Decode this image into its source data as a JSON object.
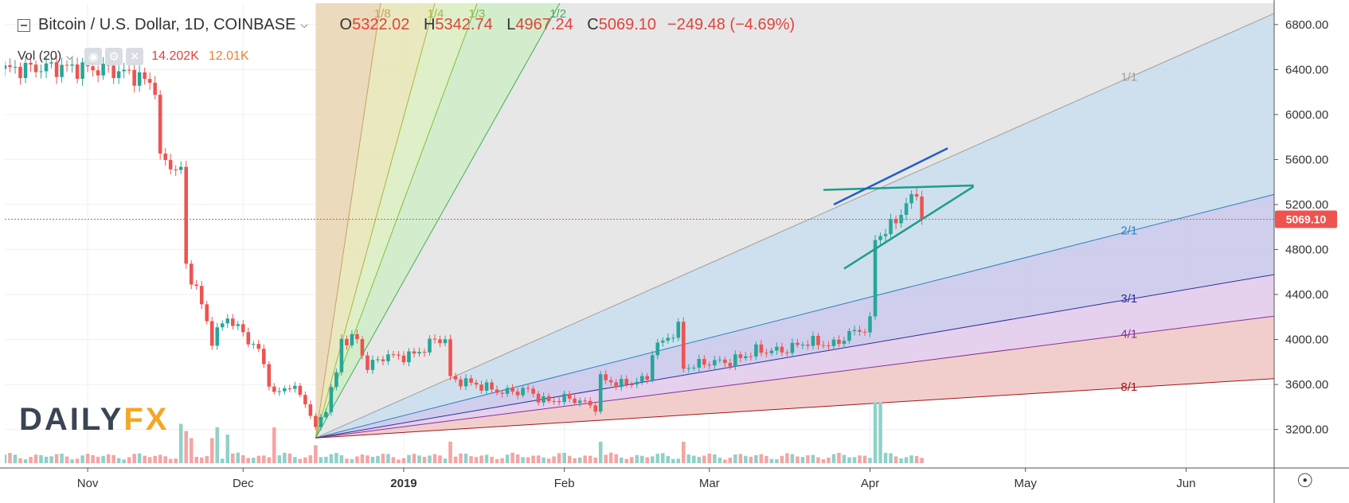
{
  "header": {
    "symbol": "Bitcoin / U.S. Dollar, 1D, COINBASE",
    "o_label": "O",
    "o_value": "5322.02",
    "h_label": "H",
    "h_value": "5342.74",
    "l_label": "L",
    "l_value": "4967.24",
    "c_label": "C",
    "c_value": "5069.10",
    "change": "−249.48 (−4.69%)"
  },
  "volume_legend": {
    "label": "Vol (20)",
    "value1": "14.202K",
    "value2": "12.01K"
  },
  "logo": {
    "part1": "DAILY",
    "part2": "FX"
  },
  "colors": {
    "up": "#26a69a",
    "down": "#ef5350",
    "vol_up": "#8fd1c8",
    "vol_down": "#f4a5a3",
    "last_price": "#ef5350",
    "pattern_teal": "#1f9c8c",
    "pattern_blue": "#1f5fd1"
  },
  "chart_data": {
    "type": "candlestick",
    "symbol": "BTCUSD",
    "exchange": "COINBASE",
    "interval": "1D",
    "x_ticks": [
      "Nov",
      "Dec",
      "2019",
      "Feb",
      "Mar",
      "Apr",
      "May",
      "Jun"
    ],
    "y_ticks": [
      "3200.00",
      "3600.00",
      "4000.00",
      "4400.00",
      "4800.00",
      "5200.00",
      "5600.00",
      "6000.00",
      "6400.00",
      "6800.00"
    ],
    "ylim": [
      2900,
      6990
    ],
    "xlim": [
      "2018-10-16",
      "2019-06-18"
    ],
    "last_price": 5069.1,
    "last_price_label": "5069.10",
    "price_anchors": [
      [
        "2018-10-16",
        6400
      ],
      [
        "2018-10-25",
        6420
      ],
      [
        "2018-11-05",
        6400
      ],
      [
        "2018-11-10",
        6350
      ],
      [
        "2018-11-14",
        6250
      ],
      [
        "2018-11-15",
        5600
      ],
      [
        "2018-11-19",
        5500
      ],
      [
        "2018-11-20",
        4650
      ],
      [
        "2018-11-22",
        4450
      ],
      [
        "2018-11-25",
        4000
      ],
      [
        "2018-11-28",
        4200
      ],
      [
        "2018-12-01",
        4050
      ],
      [
        "2018-12-04",
        3900
      ],
      [
        "2018-12-07",
        3500
      ],
      [
        "2018-12-10",
        3600
      ],
      [
        "2018-12-13",
        3450
      ],
      [
        "2018-12-15",
        3200
      ],
      [
        "2018-12-17",
        3400
      ],
      [
        "2018-12-19",
        3700
      ],
      [
        "2018-12-20",
        4000
      ],
      [
        "2018-12-23",
        4000
      ],
      [
        "2018-12-25",
        3750
      ],
      [
        "2018-12-28",
        3850
      ],
      [
        "2019-01-02",
        3850
      ],
      [
        "2019-01-05",
        3920
      ],
      [
        "2019-01-07",
        4000
      ],
      [
        "2019-01-09",
        4000
      ],
      [
        "2019-01-10",
        3650
      ],
      [
        "2019-01-15",
        3600
      ],
      [
        "2019-01-20",
        3530
      ],
      [
        "2019-01-25",
        3550
      ],
      [
        "2019-01-28",
        3450
      ],
      [
        "2019-02-02",
        3480
      ],
      [
        "2019-02-07",
        3400
      ],
      [
        "2019-02-08",
        3650
      ],
      [
        "2019-02-12",
        3600
      ],
      [
        "2019-02-17",
        3650
      ],
      [
        "2019-02-18",
        3900
      ],
      [
        "2019-02-23",
        4100
      ],
      [
        "2019-02-24",
        3750
      ],
      [
        "2019-03-01",
        3800
      ],
      [
        "2019-03-05",
        3800
      ],
      [
        "2019-03-10",
        3900
      ],
      [
        "2019-03-15",
        3900
      ],
      [
        "2019-03-20",
        3980
      ],
      [
        "2019-03-25",
        3950
      ],
      [
        "2019-03-28",
        4050
      ],
      [
        "2019-03-31",
        4100
      ],
      [
        "2019-04-01",
        4150
      ],
      [
        "2019-04-02",
        4900
      ],
      [
        "2019-04-05",
        5000
      ],
      [
        "2019-04-08",
        5200
      ],
      [
        "2019-04-10",
        5300
      ],
      [
        "2019-04-11",
        5069
      ]
    ],
    "volume_spikes": [
      [
        "2018-11-19",
        0.55
      ],
      [
        "2018-11-20",
        0.45
      ],
      [
        "2018-11-21",
        0.35
      ],
      [
        "2018-11-25",
        0.35
      ],
      [
        "2018-11-26",
        0.5
      ],
      [
        "2018-11-28",
        0.4
      ],
      [
        "2018-12-07",
        0.5
      ],
      [
        "2018-12-15",
        0.25
      ],
      [
        "2019-01-10",
        0.3
      ],
      [
        "2019-02-08",
        0.3
      ],
      [
        "2019-02-24",
        0.3
      ],
      [
        "2019-04-02",
        0.85
      ],
      [
        "2019-04-03",
        0.85
      ]
    ],
    "gann_fan": {
      "origin": [
        "2018-12-15",
        3125
      ],
      "lines": [
        {
          "label": "1/8",
          "slope_per_day": 308
        },
        {
          "label": "1/4",
          "slope_per_day": 168
        },
        {
          "label": "1/3",
          "slope_per_day": 124
        },
        {
          "label": "1/2",
          "slope_per_day": 82
        },
        {
          "label": "1/1",
          "slope_per_day": 20.4
        },
        {
          "label": "2/1",
          "slope_per_day": 11.7
        },
        {
          "label": "3/1",
          "slope_per_day": 7.85
        },
        {
          "label": "4/1",
          "slope_per_day": 5.85
        },
        {
          "label": "8/1",
          "slope_per_day": 2.85
        }
      ],
      "zone_colors": [
        "#e9d3b0",
        "#e6e4b4",
        "#d9ecbe",
        "#cbeac3",
        "#e3e3e3",
        "#c6dbea",
        "#c8c5ea",
        "#e1c8ea",
        "#efc6c3"
      ],
      "line_colors": [
        "#c8a066",
        "#a9b640",
        "#7fbe3f",
        "#3fae5a",
        "#9e9e9e",
        "#2f7fc1",
        "#2f2f9a",
        "#8a2f9a",
        "#a31515"
      ]
    },
    "pattern_lines": [
      {
        "from": [
          "2019-03-23",
          5330
        ],
        "to": [
          "2019-04-21",
          5370
        ],
        "color": "teal"
      },
      {
        "from": [
          "2019-03-27",
          4630
        ],
        "to": [
          "2019-04-21",
          5360
        ],
        "color": "teal"
      },
      {
        "from": [
          "2019-03-25",
          5200
        ],
        "to": [
          "2019-04-16",
          5700
        ],
        "color": "blue"
      }
    ]
  }
}
